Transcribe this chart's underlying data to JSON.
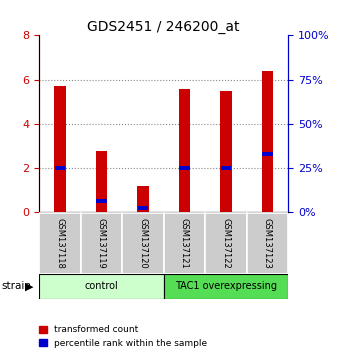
{
  "title": "GDS2451 / 246200_at",
  "samples": [
    "GSM137118",
    "GSM137119",
    "GSM137120",
    "GSM137121",
    "GSM137122",
    "GSM137123"
  ],
  "red_values": [
    5.72,
    2.78,
    1.2,
    5.58,
    5.5,
    6.38
  ],
  "blue_values_left": [
    2.0,
    0.52,
    0.22,
    2.0,
    2.0,
    2.62
  ],
  "ylim_left": [
    0,
    8
  ],
  "ylim_right": [
    0,
    100
  ],
  "right_ticks": [
    0,
    25,
    50,
    75,
    100
  ],
  "left_ticks": [
    0,
    2,
    4,
    6,
    8
  ],
  "groups": [
    {
      "label": "control",
      "start": 0,
      "end": 3,
      "color": "#ccffcc",
      "border_color": "#000000"
    },
    {
      "label": "TAC1 overexpressing",
      "start": 3,
      "end": 6,
      "color": "#55dd55",
      "border_color": "#000000"
    }
  ],
  "red_color": "#cc0000",
  "blue_color": "#0000cc",
  "dotted_line_color": "#888888",
  "legend_red": "transformed count",
  "legend_blue": "percentile rank within the sample",
  "strain_label": "strain",
  "title_fontsize": 10,
  "axis_fontsize": 8,
  "tick_label_color_left": "#cc0000",
  "tick_label_color_right": "#0000cc"
}
